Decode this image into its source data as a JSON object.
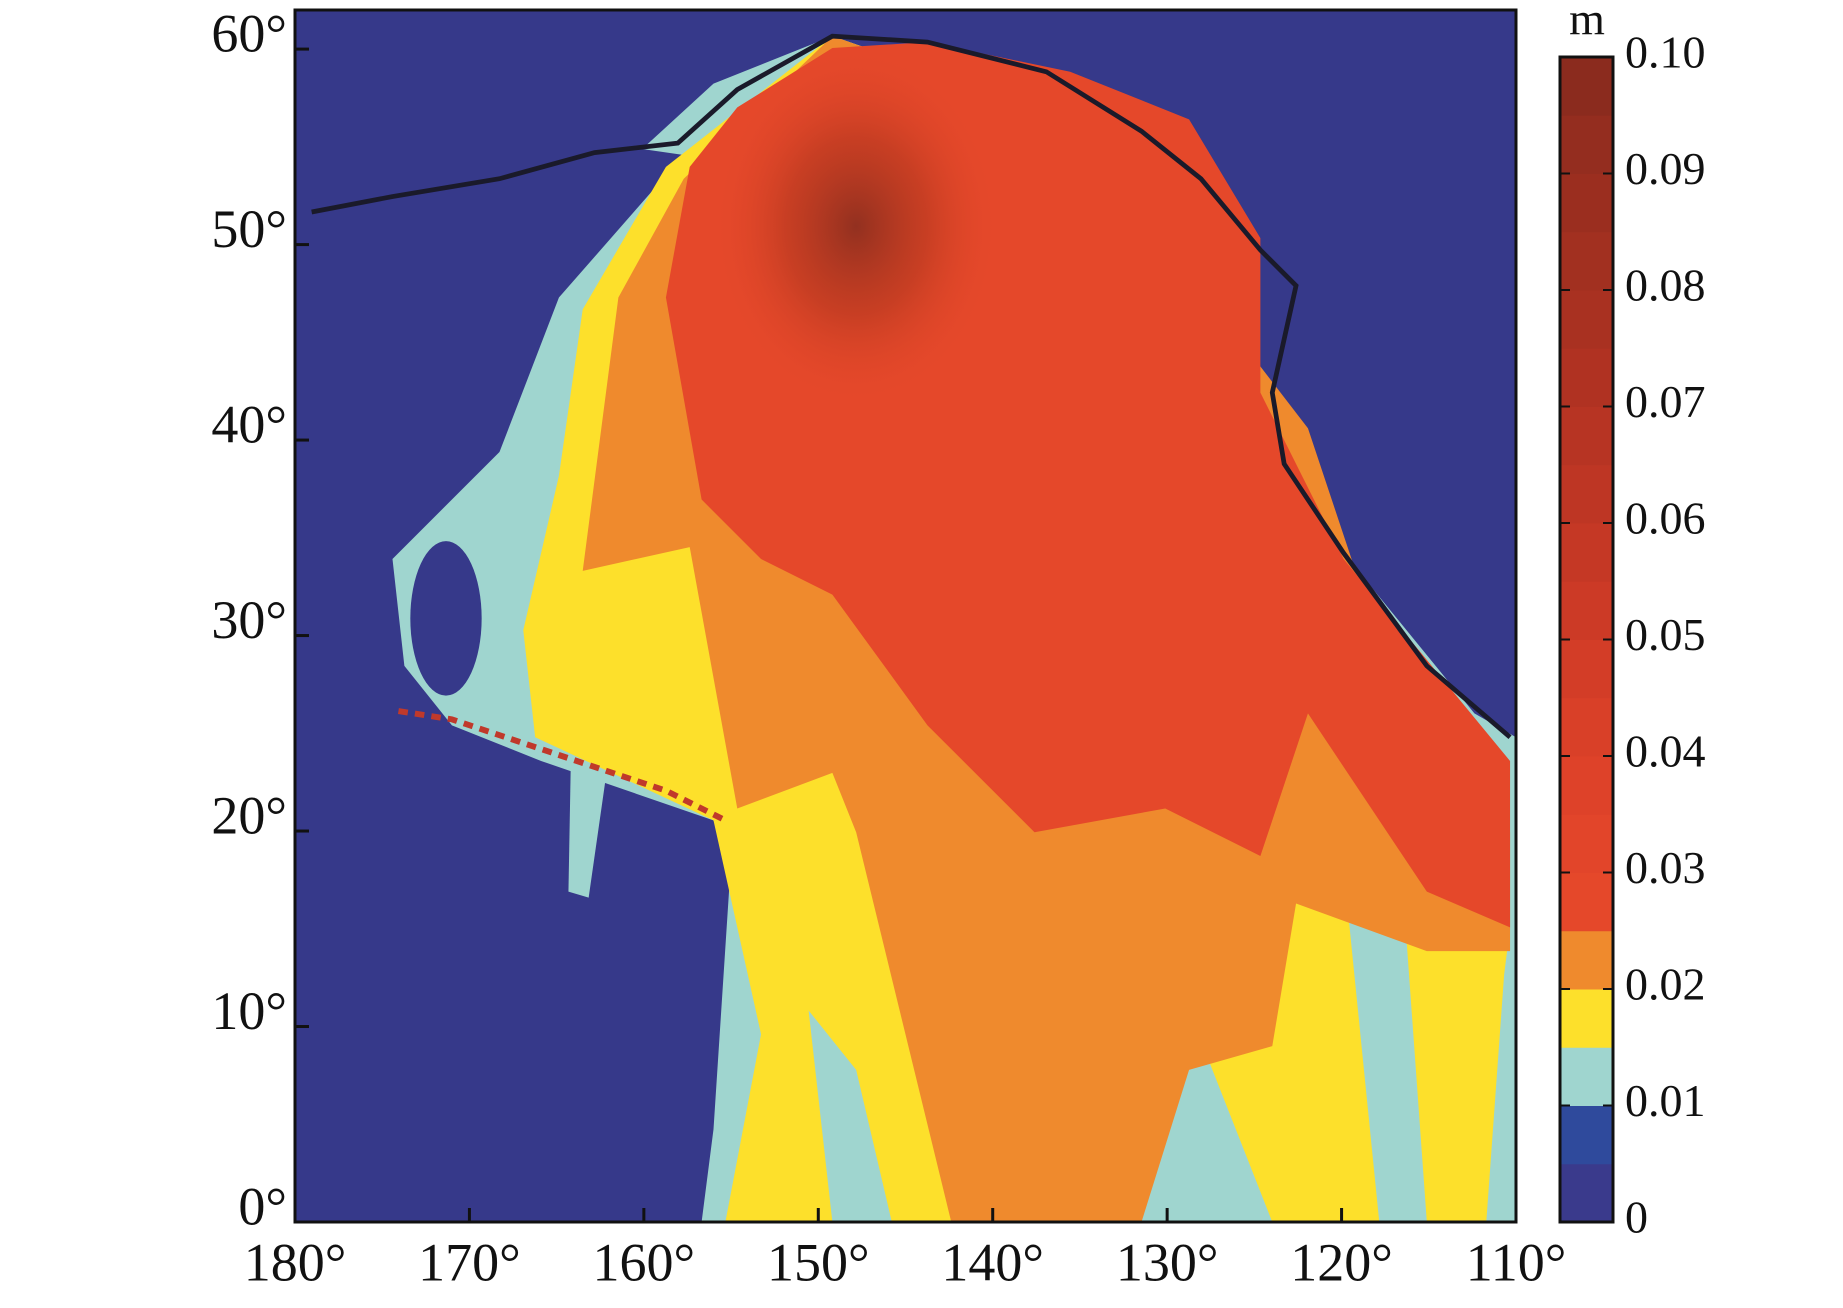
{
  "chart_data": {
    "type": "heatmap",
    "xlim": [
      180,
      110
    ],
    "ylim": [
      0,
      62
    ],
    "xticks": [
      {
        "value": 180,
        "label": "180°"
      },
      {
        "value": 170,
        "label": "170°"
      },
      {
        "value": 160,
        "label": "160°"
      },
      {
        "value": 150,
        "label": "150°"
      },
      {
        "value": 140,
        "label": "140°"
      },
      {
        "value": 130,
        "label": "130°"
      },
      {
        "value": 120,
        "label": "120°"
      },
      {
        "value": 110,
        "label": "110°"
      }
    ],
    "yticks": [
      {
        "value": 0,
        "label": "0°"
      },
      {
        "value": 10,
        "label": "10°"
      },
      {
        "value": 20,
        "label": "20°"
      },
      {
        "value": 30,
        "label": "30°"
      },
      {
        "value": 40,
        "label": "40°"
      },
      {
        "value": 50,
        "label": "50°"
      },
      {
        "value": 60,
        "label": "60°"
      }
    ],
    "colorbar": {
      "label": "m",
      "lim": [
        0,
        0.1
      ],
      "ticks": [
        0,
        0.01,
        0.02,
        0.03,
        0.04,
        0.05,
        0.06,
        0.07,
        0.08,
        0.09,
        {
          "value": 0.1,
          "label": "0.10"
        }
      ],
      "colors": [
        "#3a3a8c",
        "#2f4a9c",
        "#9fd5cf",
        "#fde02b",
        "#ef8a2d",
        "#e5482a",
        "#e2452a",
        "#de4229",
        "#d94028",
        "#d33d27",
        "#cc3a26",
        "#c53825",
        "#be3624",
        "#b73423",
        "#b03222",
        "#a93121",
        "#a23020",
        "#9b2e1f",
        "#942d1f",
        "#8b2b1e"
      ]
    }
  }
}
